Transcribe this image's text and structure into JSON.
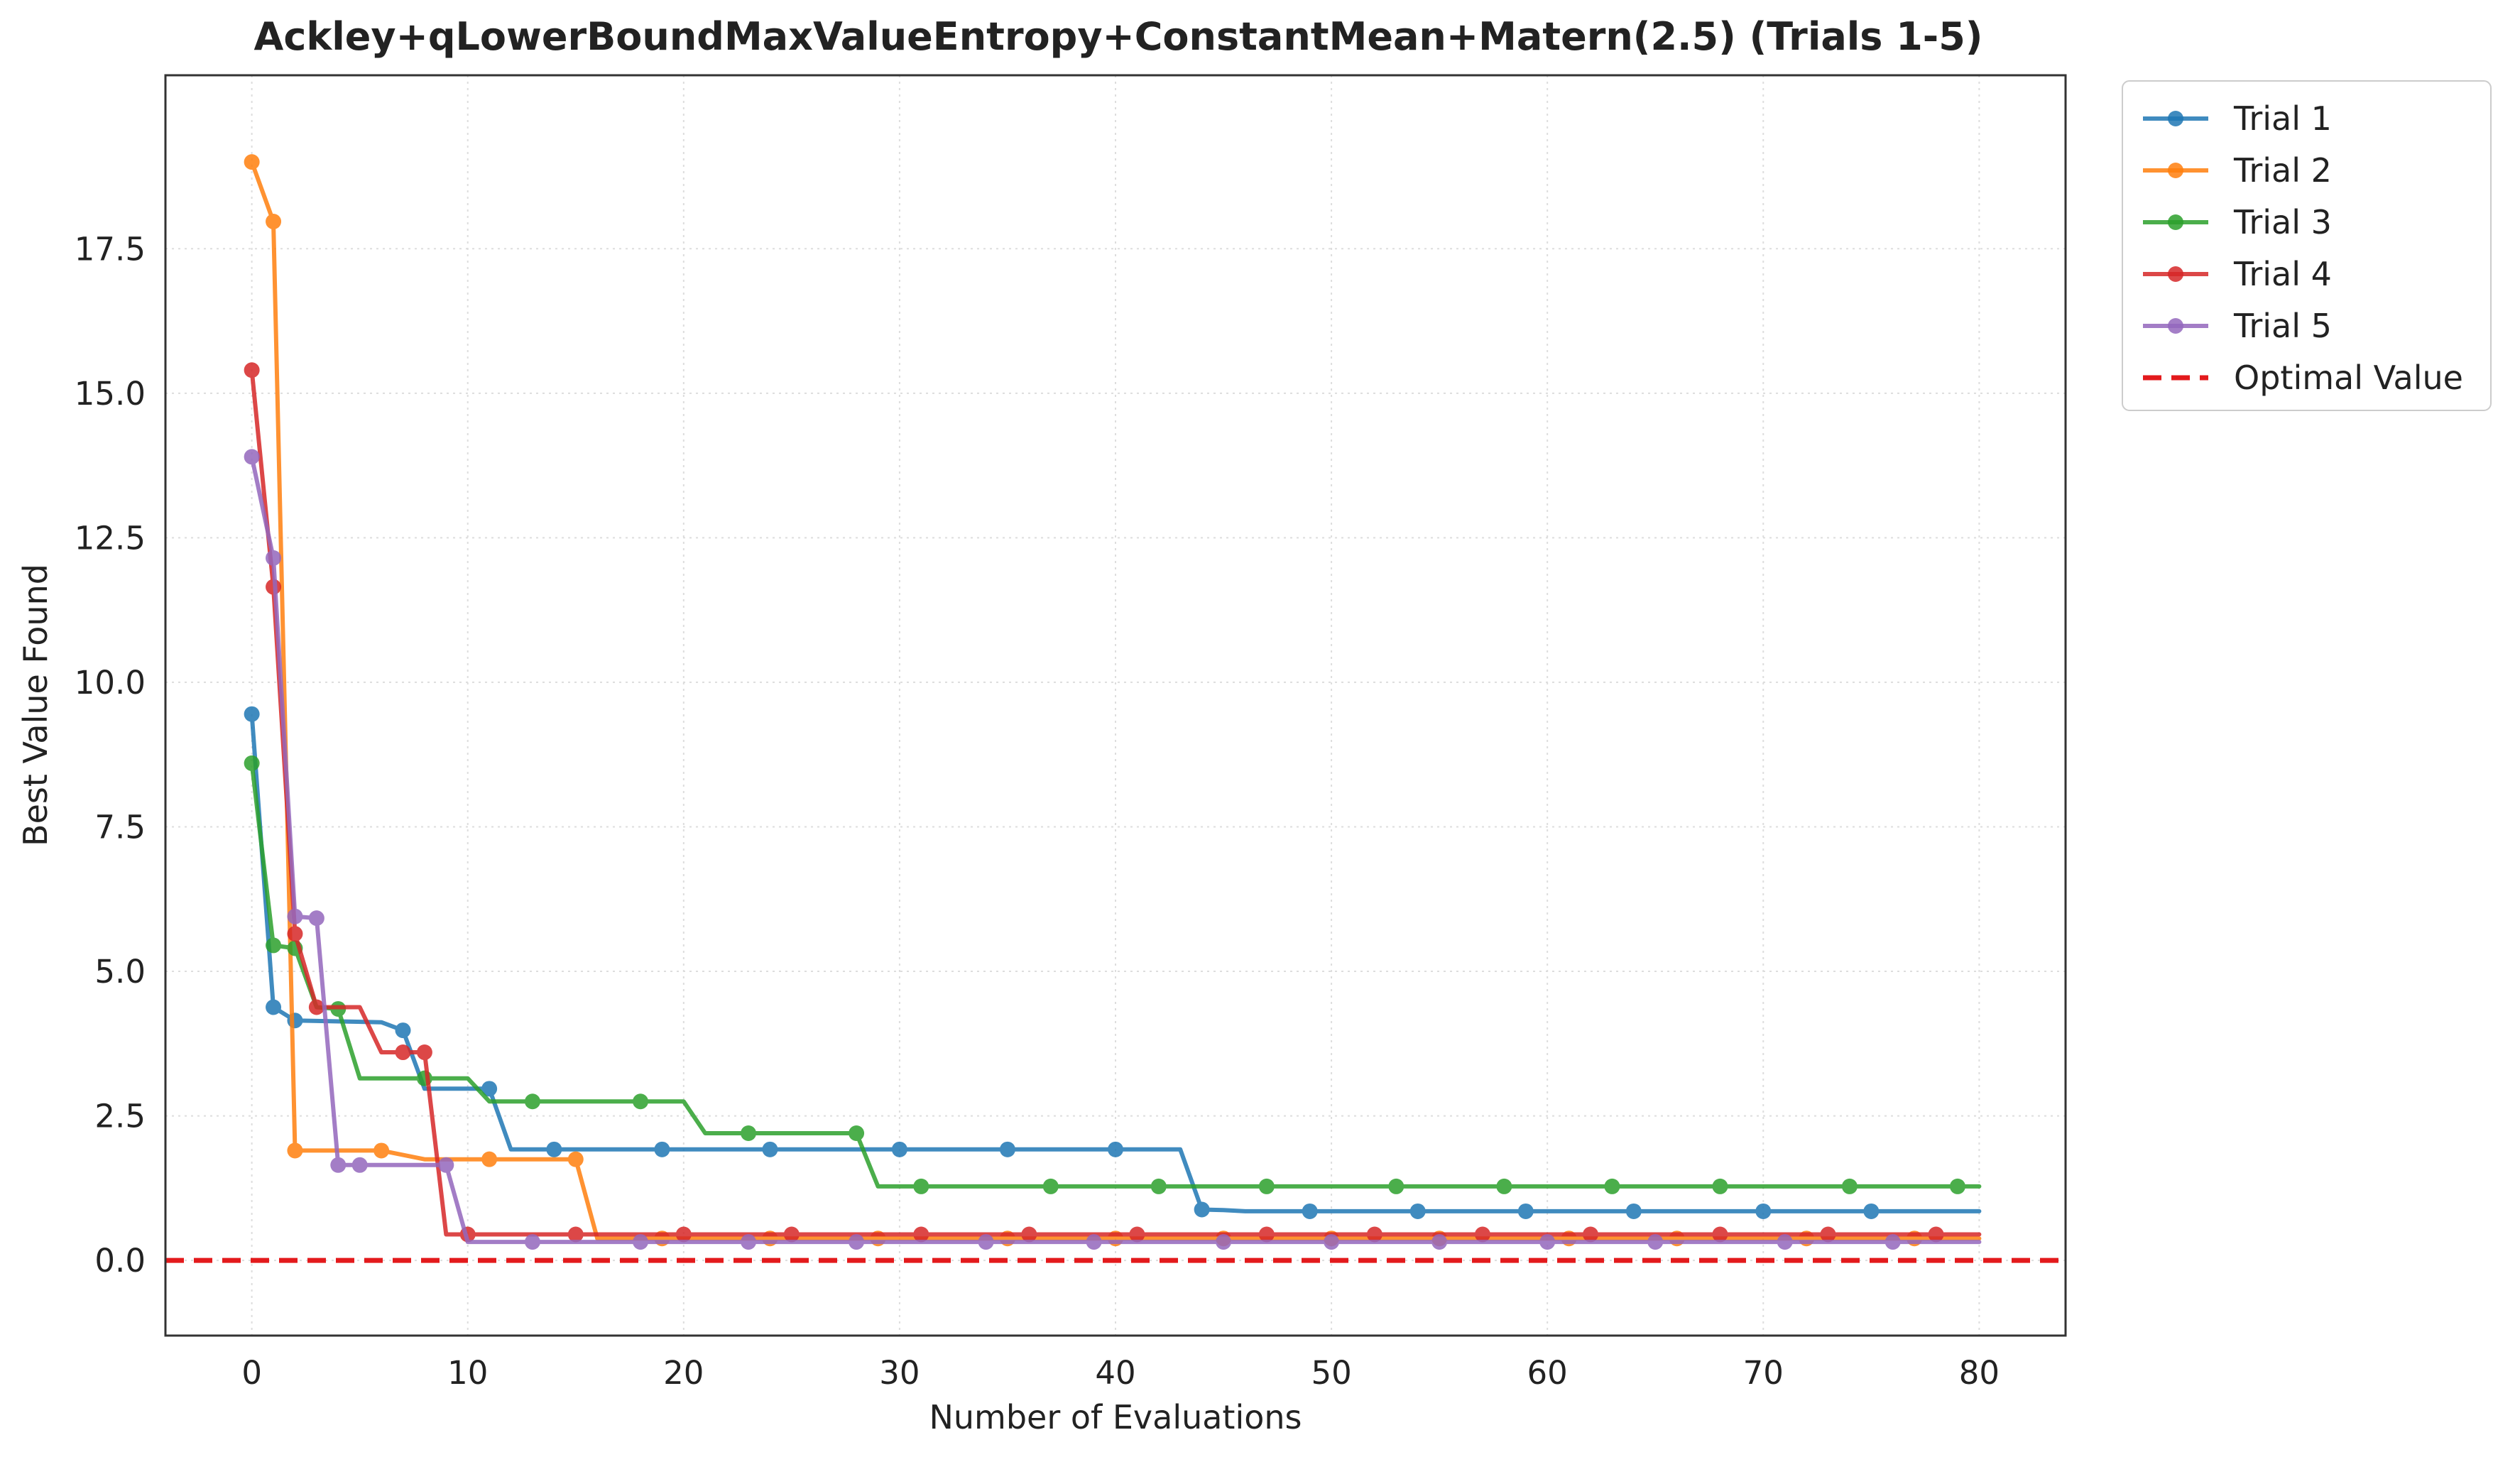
{
  "chart_data": {
    "type": "line",
    "title": "Ackley+qLowerBoundMaxValueEntropy+ConstantMean+Matern(2.5) (Trials 1-5)",
    "xlabel": "Number of Evaluations",
    "ylabel": "Best Value Found",
    "xlim": [
      -4,
      84
    ],
    "ylim": [
      -1.3,
      20.5
    ],
    "xticks": [
      0,
      10,
      20,
      30,
      40,
      50,
      60,
      70,
      80
    ],
    "yticks": [
      0.0,
      2.5,
      5.0,
      7.5,
      10.0,
      12.5,
      15.0,
      17.5
    ],
    "xtick_labels": [
      "0",
      "10",
      "20",
      "30",
      "40",
      "50",
      "60",
      "70",
      "80"
    ],
    "ytick_labels": [
      "0.0",
      "2.5",
      "5.0",
      "7.5",
      "10.0",
      "12.5",
      "15.0",
      "17.5"
    ],
    "grid": true,
    "legend_position": "outside-top-right",
    "series": [
      {
        "name": "Trial 1",
        "color": "#1f77b4",
        "points": [
          [
            0,
            9.45
          ],
          [
            1,
            4.38
          ],
          [
            2,
            4.15
          ],
          [
            6,
            4.12
          ],
          [
            7,
            3.98
          ],
          [
            8,
            2.97
          ],
          [
            11,
            2.97
          ],
          [
            12,
            1.92
          ],
          [
            43,
            1.92
          ],
          [
            44,
            0.88
          ],
          [
            45,
            0.87
          ],
          [
            46,
            0.85
          ],
          [
            80,
            0.85
          ]
        ],
        "markers": [
          [
            0,
            9.45
          ],
          [
            1,
            4.38
          ],
          [
            2,
            4.15
          ],
          [
            7,
            3.98
          ],
          [
            11,
            2.97
          ],
          [
            14,
            1.92
          ],
          [
            19,
            1.92
          ],
          [
            24,
            1.92
          ],
          [
            30,
            1.92
          ],
          [
            35,
            1.92
          ],
          [
            40,
            1.92
          ],
          [
            44,
            0.88
          ],
          [
            49,
            0.85
          ],
          [
            54,
            0.85
          ],
          [
            59,
            0.85
          ],
          [
            64,
            0.85
          ],
          [
            70,
            0.85
          ],
          [
            75,
            0.85
          ]
        ]
      },
      {
        "name": "Trial 2",
        "color": "#ff7f0e",
        "points": [
          [
            0,
            19.0
          ],
          [
            1,
            17.97
          ],
          [
            2,
            1.9
          ],
          [
            6,
            1.9
          ],
          [
            8,
            1.75
          ],
          [
            15,
            1.75
          ],
          [
            16,
            0.38
          ],
          [
            80,
            0.38
          ]
        ],
        "markers": [
          [
            0,
            19.0
          ],
          [
            1,
            17.97
          ],
          [
            2,
            1.9
          ],
          [
            6,
            1.9
          ],
          [
            11,
            1.75
          ],
          [
            15,
            1.75
          ],
          [
            19,
            0.38
          ],
          [
            24,
            0.38
          ],
          [
            29,
            0.38
          ],
          [
            35,
            0.38
          ],
          [
            40,
            0.38
          ],
          [
            45,
            0.38
          ],
          [
            50,
            0.38
          ],
          [
            55,
            0.38
          ],
          [
            61,
            0.38
          ],
          [
            66,
            0.38
          ],
          [
            72,
            0.38
          ],
          [
            77,
            0.38
          ]
        ]
      },
      {
        "name": "Trial 3",
        "color": "#2ca02c",
        "points": [
          [
            0,
            8.6
          ],
          [
            1,
            5.45
          ],
          [
            2,
            5.4
          ],
          [
            3,
            4.38
          ],
          [
            4,
            4.35
          ],
          [
            5,
            3.15
          ],
          [
            8,
            3.15
          ],
          [
            10,
            3.15
          ],
          [
            11,
            2.75
          ],
          [
            20,
            2.75
          ],
          [
            21,
            2.2
          ],
          [
            28,
            2.2
          ],
          [
            29,
            1.28
          ],
          [
            80,
            1.28
          ]
        ],
        "markers": [
          [
            0,
            8.6
          ],
          [
            1,
            5.45
          ],
          [
            2,
            5.4
          ],
          [
            4,
            4.35
          ],
          [
            8,
            3.15
          ],
          [
            13,
            2.75
          ],
          [
            18,
            2.75
          ],
          [
            23,
            2.2
          ],
          [
            28,
            2.2
          ],
          [
            31,
            1.28
          ],
          [
            37,
            1.28
          ],
          [
            42,
            1.28
          ],
          [
            47,
            1.28
          ],
          [
            53,
            1.28
          ],
          [
            58,
            1.28
          ],
          [
            63,
            1.28
          ],
          [
            68,
            1.28
          ],
          [
            74,
            1.28
          ],
          [
            79,
            1.28
          ]
        ]
      },
      {
        "name": "Trial 4",
        "color": "#d62728",
        "points": [
          [
            0,
            15.4
          ],
          [
            1,
            11.65
          ],
          [
            2,
            5.65
          ],
          [
            3,
            4.38
          ],
          [
            5,
            4.38
          ],
          [
            6,
            3.6
          ],
          [
            8,
            3.6
          ],
          [
            9,
            0.45
          ],
          [
            80,
            0.45
          ]
        ],
        "markers": [
          [
            0,
            15.4
          ],
          [
            1,
            11.65
          ],
          [
            2,
            5.65
          ],
          [
            3,
            4.38
          ],
          [
            7,
            3.6
          ],
          [
            8,
            3.6
          ],
          [
            10,
            0.45
          ],
          [
            15,
            0.45
          ],
          [
            20,
            0.45
          ],
          [
            25,
            0.45
          ],
          [
            31,
            0.45
          ],
          [
            36,
            0.45
          ],
          [
            41,
            0.45
          ],
          [
            47,
            0.45
          ],
          [
            52,
            0.45
          ],
          [
            57,
            0.45
          ],
          [
            62,
            0.45
          ],
          [
            68,
            0.45
          ],
          [
            73,
            0.45
          ],
          [
            78,
            0.45
          ]
        ]
      },
      {
        "name": "Trial 5",
        "color": "#9467bd",
        "points": [
          [
            0,
            13.9
          ],
          [
            1,
            12.15
          ],
          [
            2,
            5.95
          ],
          [
            3,
            5.92
          ],
          [
            4,
            1.65
          ],
          [
            9,
            1.65
          ],
          [
            10,
            0.32
          ],
          [
            80,
            0.32
          ]
        ],
        "markers": [
          [
            0,
            13.9
          ],
          [
            1,
            12.15
          ],
          [
            2,
            5.95
          ],
          [
            3,
            5.92
          ],
          [
            4,
            1.65
          ],
          [
            5,
            1.65
          ],
          [
            9,
            1.65
          ],
          [
            13,
            0.32
          ],
          [
            18,
            0.32
          ],
          [
            23,
            0.32
          ],
          [
            28,
            0.32
          ],
          [
            34,
            0.32
          ],
          [
            39,
            0.32
          ],
          [
            45,
            0.32
          ],
          [
            50,
            0.32
          ],
          [
            55,
            0.32
          ],
          [
            60,
            0.32
          ],
          [
            65,
            0.32
          ],
          [
            71,
            0.32
          ],
          [
            76,
            0.32
          ]
        ]
      }
    ],
    "reference_line": {
      "name": "Optimal Value",
      "y": 0.0,
      "color": "#e31a1c",
      "style": "dashed"
    }
  }
}
